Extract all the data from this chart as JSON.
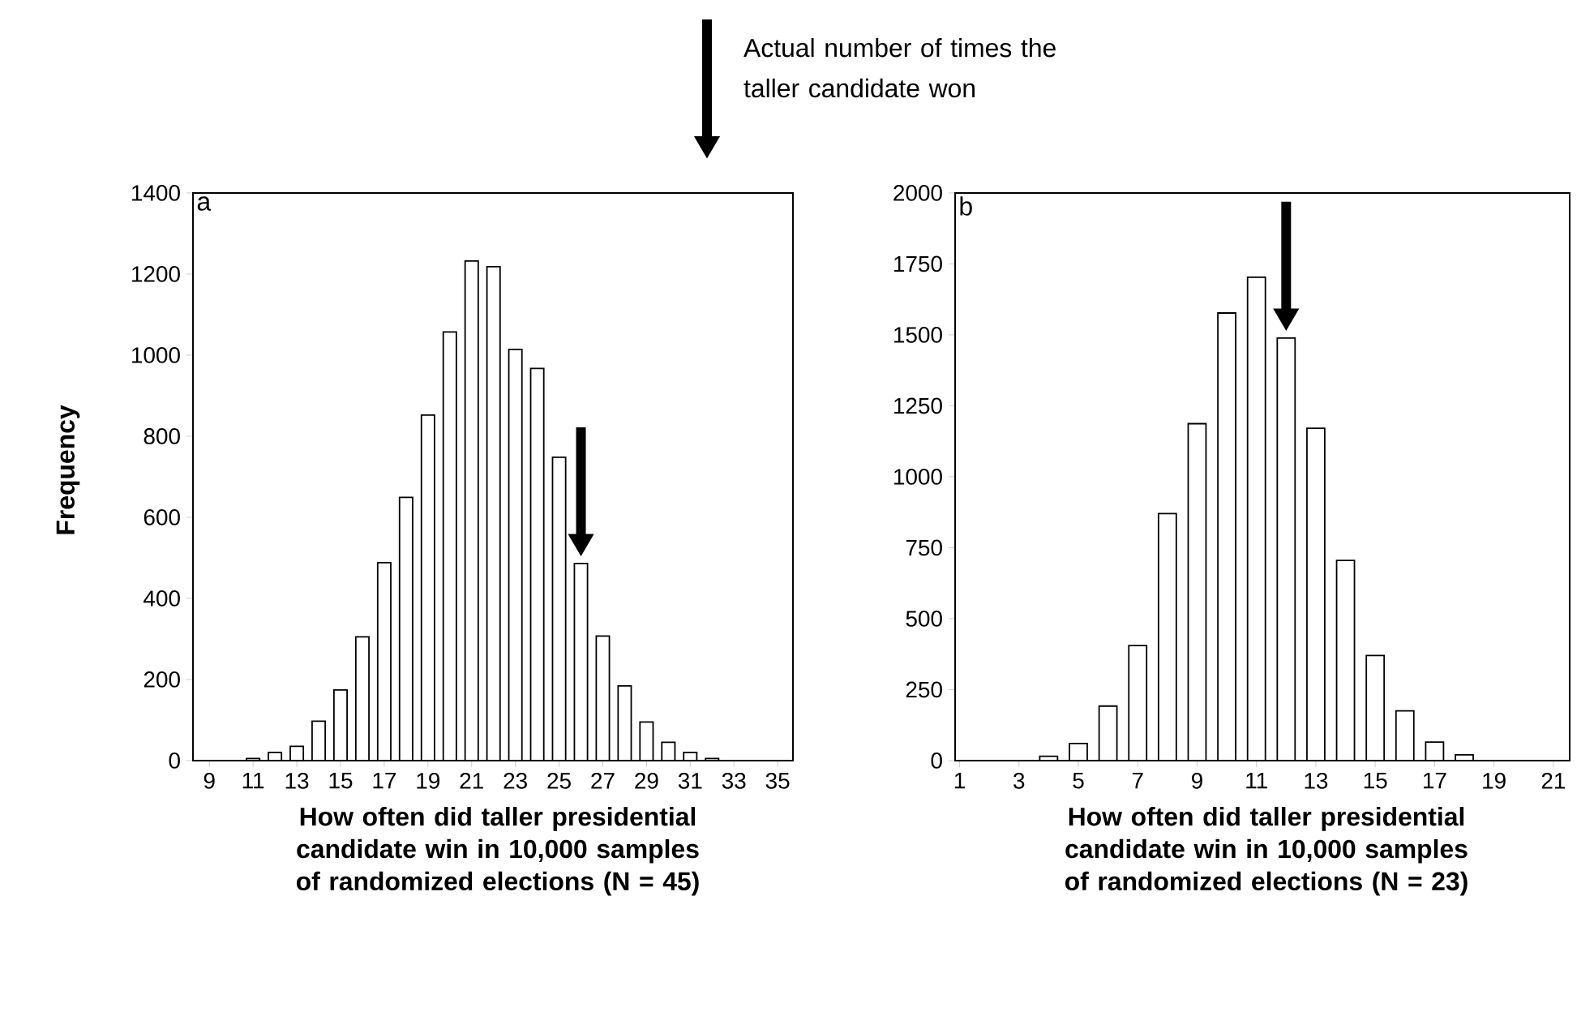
{
  "chart_data": [
    {
      "type": "bar",
      "x": [
        11,
        12,
        13,
        14,
        15,
        16,
        17,
        18,
        19,
        20,
        21,
        22,
        23,
        24,
        25,
        26,
        27,
        28,
        29,
        30,
        31,
        32
      ],
      "values": [
        5,
        20,
        35,
        97,
        174,
        305,
        488,
        649,
        852,
        1057,
        1232,
        1218,
        1014,
        967,
        748,
        486,
        307,
        184,
        95,
        45,
        20,
        5
      ],
      "color": "#ffffff",
      "xlim": [
        8.25,
        35.7
      ],
      "xticks": [
        9,
        11,
        13,
        15,
        17,
        19,
        21,
        23,
        25,
        27,
        29,
        31,
        33,
        35
      ],
      "ylim": [
        0,
        1400
      ],
      "yticks": [
        0,
        200,
        400,
        600,
        800,
        1000,
        1200,
        1400
      ],
      "xlabel": "How often did taller presidential candidate win in 10,000 samples of randomized elections (N = 45)",
      "ylabel": "Frequency",
      "annotations": [
        "a",
        "Actual number of times the taller candidate won"
      ],
      "ref_lines": [
        {
          "axis": "x",
          "value": 26
        }
      ]
    },
    {
      "type": "bar",
      "x": [
        4,
        5,
        6,
        7,
        8,
        9,
        10,
        11,
        12,
        13,
        14,
        15,
        16,
        17,
        18
      ],
      "values": [
        15,
        60,
        192,
        405,
        870,
        1187,
        1577,
        1703,
        1489,
        1171,
        705,
        370,
        175,
        65,
        20
      ],
      "color": "#ffffff",
      "xlim": [
        0.85,
        21.55
      ],
      "xticks": [
        1,
        3,
        5,
        7,
        9,
        11,
        13,
        15,
        17,
        19,
        21
      ],
      "ylim": [
        0,
        2000
      ],
      "yticks": [
        0,
        250,
        500,
        750,
        1000,
        1250,
        1500,
        1750,
        2000
      ],
      "xlabel": "How often did taller presidential candidate win in 10,000 samples of randomized elections (N = 23)",
      "annotations": [
        "b"
      ],
      "ref_lines": [
        {
          "axis": "x",
          "value": 12
        }
      ]
    }
  ]
}
